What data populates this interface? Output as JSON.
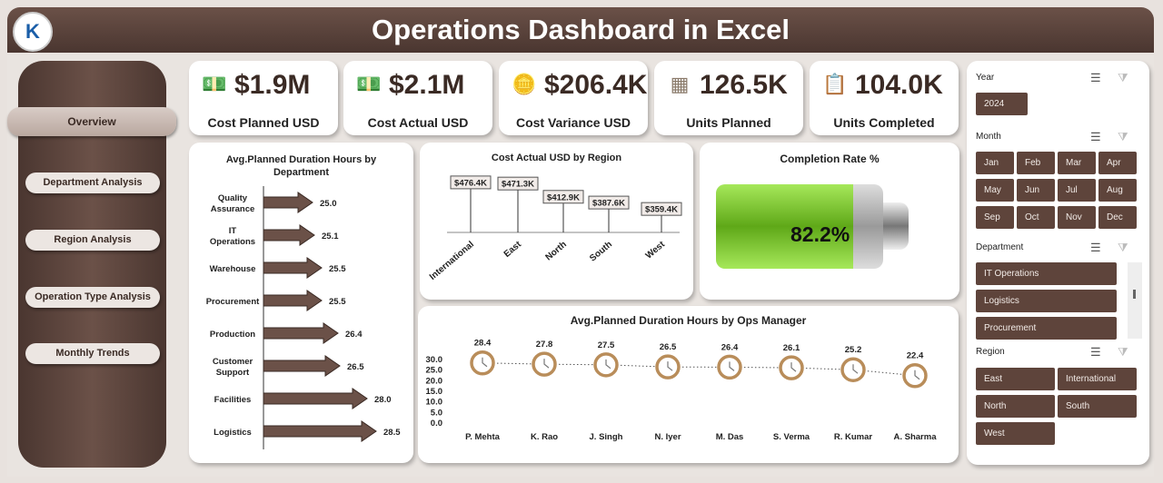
{
  "header": {
    "title": "Operations Dashboard in Excel",
    "logo_text": "K"
  },
  "nav": [
    {
      "label": "Overview",
      "active": true
    },
    {
      "label": "Department Analysis"
    },
    {
      "label": "Region Analysis"
    },
    {
      "label": "Operation Type Analysis"
    },
    {
      "label": "Monthly Trends"
    }
  ],
  "kpis": [
    {
      "value": "$1.9M",
      "label": "Cost Planned USD",
      "icon": "money-icon"
    },
    {
      "value": "$2.1M",
      "label": "Cost Actual USD",
      "icon": "money-icon"
    },
    {
      "value": "$206.4K",
      "label": "Cost Variance USD",
      "icon": "coins-icon"
    },
    {
      "value": "126.5K",
      "label": "Units Planned",
      "icon": "blueprint-icon"
    },
    {
      "value": "104.0K",
      "label": "Units Completed",
      "icon": "clipboard-icon"
    }
  ],
  "chart_data": [
    {
      "type": "bar",
      "title": "Avg.Planned Duration Hours by Department",
      "categories": [
        "Quality Assurance",
        "IT Operations",
        "Warehouse",
        "Procurement",
        "Production",
        "Customer Support",
        "Facilities",
        "Logistics"
      ],
      "values": [
        25.0,
        25.1,
        25.5,
        25.5,
        26.4,
        26.5,
        28.0,
        28.5
      ],
      "value_labels": [
        "25.0",
        "25.1",
        "25.5",
        "25.5",
        "26.4",
        "26.5",
        "28.0",
        "28.5"
      ]
    },
    {
      "type": "bar",
      "title": "Cost Actual USD by Region",
      "categories": [
        "International",
        "East",
        "North",
        "South",
        "West"
      ],
      "values": [
        476.4,
        471.3,
        412.9,
        387.6,
        359.4
      ],
      "value_labels": [
        "$476.4K",
        "$471.3K",
        "$412.9K",
        "$387.6K",
        "$359.4K"
      ]
    },
    {
      "type": "gauge",
      "title": "Completion Rate %",
      "value": 82.2,
      "value_label": "82.2%",
      "color": "#7cc62a"
    },
    {
      "type": "line",
      "title": "Avg.Planned Duration Hours by Ops Manager",
      "categories": [
        "P. Mehta",
        "K. Rao",
        "J. Singh",
        "N. Iyer",
        "M. Das",
        "S. Verma",
        "R. Kumar",
        "A. Sharma"
      ],
      "values": [
        28.4,
        27.8,
        27.5,
        26.5,
        26.4,
        26.1,
        25.2,
        22.4
      ],
      "value_labels": [
        "28.4",
        "27.8",
        "27.5",
        "26.5",
        "26.4",
        "26.1",
        "25.2",
        "22.4"
      ],
      "ylim": [
        0,
        30
      ],
      "yticks": [
        "30.0",
        "25.0",
        "20.0",
        "15.0",
        "10.0",
        "5.0",
        "0.0"
      ]
    }
  ],
  "slicers": {
    "year": {
      "label": "Year",
      "items": [
        "2024"
      ]
    },
    "month": {
      "label": "Month",
      "items": [
        "Jan",
        "Feb",
        "Mar",
        "Apr",
        "May",
        "Jun",
        "Jul",
        "Aug",
        "Sep",
        "Oct",
        "Nov",
        "Dec"
      ]
    },
    "department": {
      "label": "Department",
      "items": [
        "IT Operations",
        "Logistics",
        "Procurement"
      ]
    },
    "region": {
      "label": "Region",
      "items": [
        "East",
        "International",
        "North",
        "South",
        "West"
      ]
    }
  },
  "colors": {
    "brand": "#5e443b",
    "accent": "#7cc62a"
  }
}
